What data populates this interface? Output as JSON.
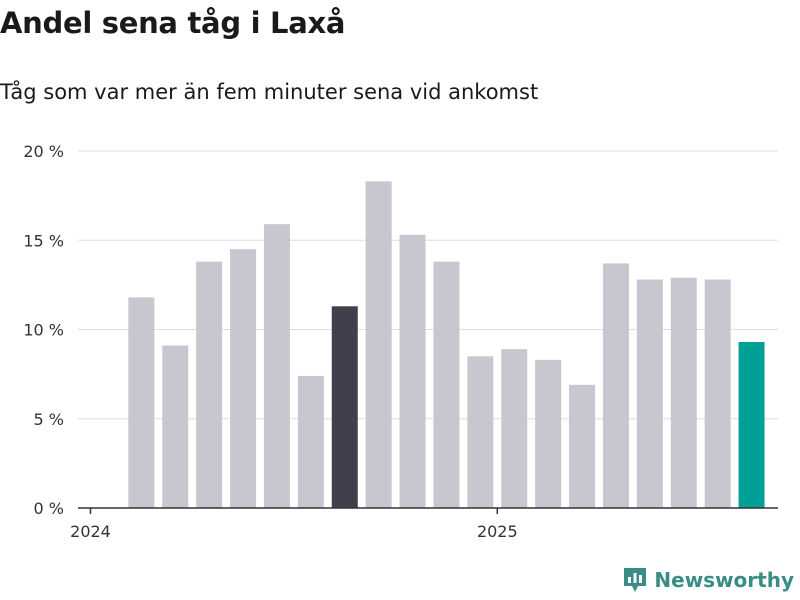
{
  "title": "Andel sena tåg i Laxå",
  "subtitle": "Tåg som var mer än fem minuter sena vid ankomst",
  "brand": "Newsworthy",
  "colors": {
    "bar": "#c8c7cf",
    "highlight": "#403f4c",
    "latest": "#00a096",
    "grid": "#dddddd",
    "axis": "#333333",
    "brand": "#3a8c86"
  },
  "chart_data": {
    "type": "bar",
    "title": "Andel sena tåg i Laxå",
    "subtitle": "Tåg som var mer än fem minuter sena vid ankomst",
    "xlabel": "",
    "ylabel": "",
    "ylim": [
      0,
      20
    ],
    "y_ticks": [
      {
        "value": 0,
        "label": "0 %"
      },
      {
        "value": 5,
        "label": "5 %"
      },
      {
        "value": 10,
        "label": "10 %"
      },
      {
        "value": 15,
        "label": "15 %"
      },
      {
        "value": 20,
        "label": "20 %"
      }
    ],
    "x_ticks": [
      {
        "month": "2024-01",
        "label": "2024"
      },
      {
        "month": "2025-01",
        "label": "2025"
      }
    ],
    "grid": true,
    "legend": "none",
    "months": [
      "2024-02",
      "2024-03",
      "2024-04",
      "2024-05",
      "2024-06",
      "2024-07",
      "2024-08",
      "2024-09",
      "2024-10",
      "2024-11",
      "2024-12",
      "2025-01",
      "2025-02",
      "2025-03",
      "2025-04",
      "2025-05",
      "2025-06",
      "2025-07",
      "2025-08"
    ],
    "values": [
      11.8,
      9.1,
      13.8,
      14.5,
      15.9,
      7.4,
      11.3,
      18.3,
      15.3,
      13.8,
      8.5,
      8.9,
      8.3,
      6.9,
      13.7,
      12.8,
      12.9,
      12.8,
      9.3
    ],
    "highlight": [
      {
        "month": "2024-08",
        "role": "highlight"
      },
      {
        "month": "2025-08",
        "role": "latest"
      }
    ]
  }
}
